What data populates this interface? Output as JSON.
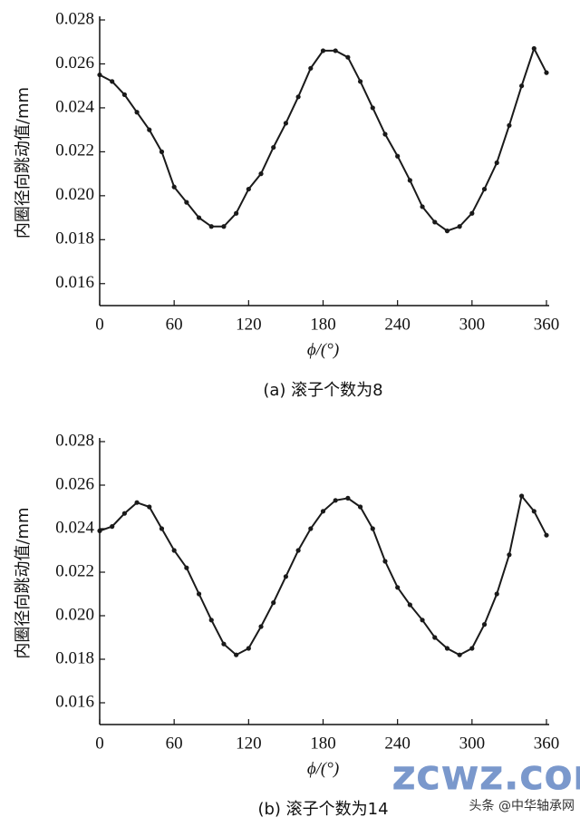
{
  "chart_data": [
    {
      "type": "line",
      "y_label": "内圈径向跳动值/mm",
      "x_label": "ϕ/(°)",
      "caption": "(a) 滚子个数为8",
      "color": "#1a1a1a",
      "x": [
        0,
        10,
        20,
        30,
        40,
        50,
        60,
        70,
        80,
        90,
        100,
        110,
        120,
        130,
        140,
        150,
        160,
        170,
        180,
        190,
        200,
        210,
        220,
        230,
        240,
        250,
        260,
        270,
        280,
        290,
        300,
        310,
        320,
        330,
        340,
        350,
        360
      ],
      "values": [
        0.0255,
        0.0252,
        0.0246,
        0.0238,
        0.023,
        0.022,
        0.0204,
        0.0197,
        0.019,
        0.0186,
        0.0186,
        0.0192,
        0.0203,
        0.021,
        0.0222,
        0.0233,
        0.0245,
        0.0258,
        0.0266,
        0.0266,
        0.0263,
        0.0252,
        0.024,
        0.0228,
        0.0218,
        0.0207,
        0.0195,
        0.0188,
        0.0184,
        0.0186,
        0.0192,
        0.0203,
        0.0215,
        0.0232,
        0.025,
        0.0267,
        0.0256
      ],
      "xlim": [
        0,
        360
      ],
      "xticks": [
        0,
        60,
        120,
        180,
        240,
        300,
        360
      ],
      "ylim": [
        0.015,
        0.028
      ],
      "yticks": [
        0.016,
        0.018,
        {
          "value": 0.02,
          "label": "0.020"
        },
        0.022,
        0.024,
        0.026,
        0.028
      ]
    },
    {
      "type": "line",
      "y_label": "内圈径向跳动值/mm",
      "x_label": "ϕ/(°)",
      "caption": "(b) 滚子个数为14",
      "color": "#1a1a1a",
      "x": [
        0,
        10,
        20,
        30,
        40,
        50,
        60,
        70,
        80,
        90,
        100,
        110,
        120,
        130,
        140,
        150,
        160,
        170,
        180,
        190,
        200,
        210,
        220,
        230,
        240,
        250,
        260,
        270,
        280,
        290,
        300,
        310,
        320,
        330,
        340,
        350,
        360
      ],
      "values": [
        0.0239,
        0.0241,
        0.0247,
        0.0252,
        0.025,
        0.024,
        0.023,
        0.0222,
        0.021,
        0.0198,
        0.0187,
        0.0182,
        0.0185,
        0.0195,
        0.0206,
        0.0218,
        0.023,
        0.024,
        0.0248,
        0.0253,
        0.0254,
        0.025,
        0.024,
        0.0225,
        0.0213,
        0.0205,
        0.0198,
        0.019,
        0.0185,
        0.0182,
        0.0185,
        0.0196,
        0.021,
        0.0228,
        0.0255,
        0.0248,
        0.0237
      ],
      "xlim": [
        0,
        360
      ],
      "xticks": [
        0,
        60,
        120,
        180,
        240,
        300,
        360
      ],
      "ylim": [
        0.015,
        0.028
      ],
      "yticks": [
        0.016,
        0.018,
        {
          "value": 0.02,
          "label": "0.020"
        },
        0.022,
        0.024,
        0.026,
        0.028
      ]
    }
  ],
  "watermark": {
    "site": "zcwz.com",
    "account": "头条 @中华轴承网"
  }
}
